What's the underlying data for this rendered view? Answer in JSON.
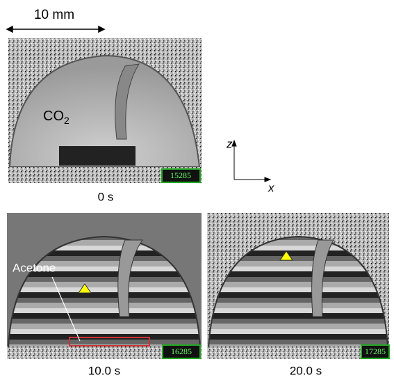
{
  "scale_bar": {
    "label": "10 mm"
  },
  "panels": [
    {
      "time": "0 s",
      "counter": "15285",
      "gas_label": {
        "base": "CO",
        "subscript": "2"
      }
    },
    {
      "time": "10.0 s",
      "counter": "16285",
      "liquid_label": "Acetone"
    },
    {
      "time": "20.0 s",
      "counter": "17285"
    }
  ],
  "axes": {
    "vertical": "z",
    "horizontal": "x"
  }
}
